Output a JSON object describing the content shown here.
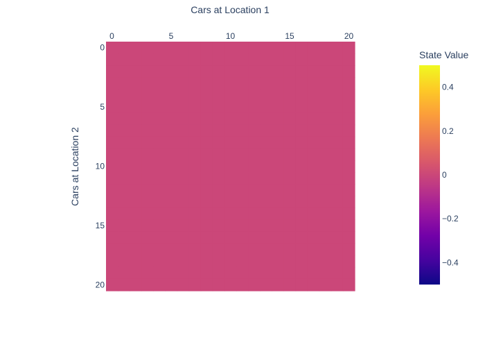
{
  "chart_data": {
    "type": "heatmap",
    "xlabel": "Cars at Location 1",
    "ylabel": "Cars at Location 2",
    "x": [
      0,
      1,
      2,
      3,
      4,
      5,
      6,
      7,
      8,
      9,
      10,
      11,
      12,
      13,
      14,
      15,
      16,
      17,
      18,
      19,
      20
    ],
    "y": [
      0,
      1,
      2,
      3,
      4,
      5,
      6,
      7,
      8,
      9,
      10,
      11,
      12,
      13,
      14,
      15,
      16,
      17,
      18,
      19,
      20
    ],
    "z_fill": 0,
    "x_ticks": [
      "0",
      "5",
      "10",
      "15",
      "20"
    ],
    "y_ticks": [
      "0",
      "5",
      "10",
      "15",
      "20"
    ],
    "x_axis_side": "top",
    "y_axis_reversed": true,
    "colorbar": {
      "title": "State Value",
      "range": [
        -0.5,
        0.5
      ],
      "ticks": [
        "0.4",
        "0.2",
        "0",
        "−0.2",
        "−0.4"
      ],
      "tick_values": [
        0.4,
        0.2,
        0,
        -0.2,
        -0.4
      ],
      "colorscale": [
        "#0d0887",
        "#46039f",
        "#7201a8",
        "#9c179e",
        "#bd3786",
        "#d8576b",
        "#ed7953",
        "#fb9f3a",
        "#fdca26",
        "#f0f921"
      ]
    },
    "grid": false
  }
}
